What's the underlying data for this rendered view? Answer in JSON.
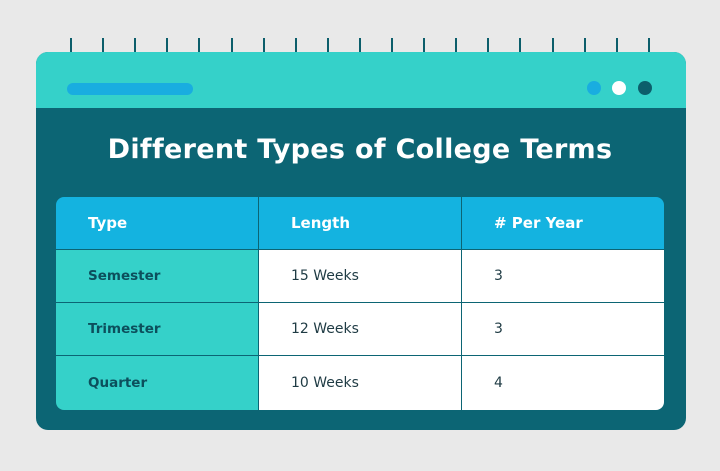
{
  "title": "Different Types of College Terms",
  "colors": {
    "background": "#e9e9e9",
    "band": "#35d1c9",
    "panel": "#0c6574",
    "header": "#14b3e0",
    "pill": "#19ade0"
  },
  "dots": [
    "#19ade0",
    "#ffffff",
    "#0c5e6b"
  ],
  "table": {
    "headers": [
      "Type",
      "Length",
      "#  Per Year"
    ],
    "rows": [
      [
        "Semester",
        "15 Weeks",
        "3"
      ],
      [
        "Trimester",
        "12 Weeks",
        "3"
      ],
      [
        "Quarter",
        "10 Weeks",
        "4"
      ]
    ]
  }
}
